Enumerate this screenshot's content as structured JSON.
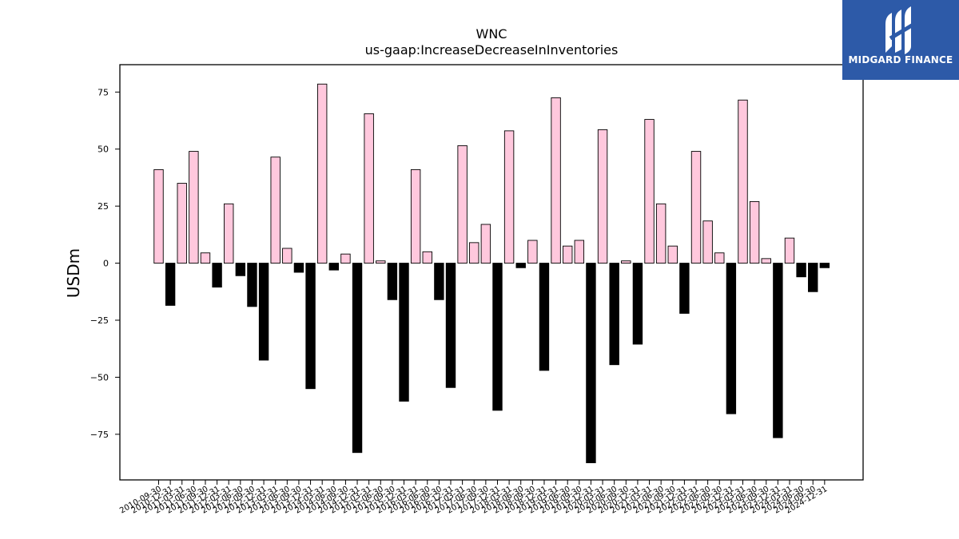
{
  "brand": {
    "name": "MIDGARD FINANCE",
    "color": "#2d5aa8"
  },
  "chart_data": {
    "type": "bar",
    "title": "WNC",
    "subtitle": "us-gaap:IncreaseDecreaseInInventories",
    "xlabel": "",
    "ylabel": "USDm",
    "ylim": [
      -95,
      87
    ],
    "yticks": [
      75,
      50,
      25,
      0,
      -25,
      -50,
      -75
    ],
    "grid": false,
    "colors": {
      "positive": "#ffc8dd",
      "negative": "#000000",
      "edge": "#000000"
    },
    "categories": [
      "2010-09-30",
      "2010-12-31",
      "2011-03-31",
      "2011-06-30",
      "2011-09-30",
      "2011-12-31",
      "2012-03-31",
      "2012-06-30",
      "2012-09-30",
      "2012-12-31",
      "2013-03-31",
      "2013-06-30",
      "2013-09-30",
      "2013-12-31",
      "2014-03-31",
      "2014-06-30",
      "2014-09-30",
      "2014-12-31",
      "2015-03-31",
      "2015-06-30",
      "2015-09-30",
      "2015-12-31",
      "2016-03-31",
      "2016-06-30",
      "2016-09-30",
      "2016-12-31",
      "2017-03-31",
      "2017-06-30",
      "2017-09-30",
      "2017-12-31",
      "2018-03-31",
      "2018-06-30",
      "2018-09-30",
      "2018-12-31",
      "2019-03-31",
      "2019-06-30",
      "2019-09-30",
      "2019-12-31",
      "2020-03-31",
      "2020-06-30",
      "2020-09-30",
      "2020-12-31",
      "2021-03-31",
      "2021-06-30",
      "2021-09-30",
      "2021-12-31",
      "2022-03-31",
      "2022-06-30",
      "2022-09-30",
      "2022-12-31",
      "2023-03-31",
      "2023-06-30",
      "2023-09-30",
      "2023-12-31",
      "2024-03-31",
      "2024-06-30",
      "2024-09-30",
      "2024-12-31"
    ],
    "values": [
      41,
      -18.5,
      35,
      49,
      4.5,
      -10.5,
      26,
      -5.5,
      -19,
      -42.5,
      46.5,
      6.5,
      -4,
      -55,
      78.5,
      -3,
      4,
      -83,
      65.5,
      1,
      -16,
      -60.5,
      41,
      5,
      -16,
      -54.5,
      51.5,
      9,
      17,
      -64.5,
      58,
      -2,
      10,
      -47,
      72.5,
      7.5,
      10,
      -87.5,
      58.5,
      -44.5,
      1,
      -35.5,
      63,
      26,
      7.5,
      -22,
      49,
      18.5,
      4.5,
      -66,
      71.5,
      27,
      2,
      -76.5,
      11,
      -6,
      -12.5,
      -2
    ]
  }
}
